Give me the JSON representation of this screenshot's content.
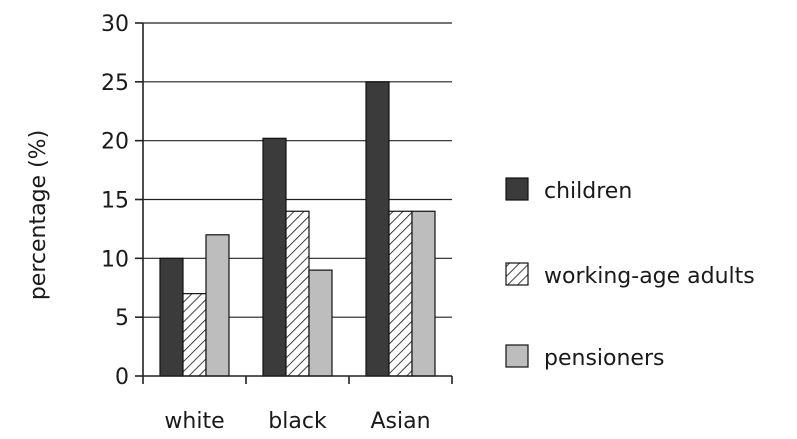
{
  "chart_data": {
    "type": "bar",
    "ylabel": "percentage (%)",
    "xlabel": "",
    "categories": [
      "white",
      "black",
      "Asian"
    ],
    "yticks": [
      "0",
      "5",
      "10",
      "15",
      "20",
      "25",
      "30"
    ],
    "ylim": [
      0,
      30
    ],
    "grid": true,
    "legend_position": "right",
    "series": [
      {
        "name": "children",
        "values": [
          10,
          20.2,
          25
        ],
        "color": "#3b3b3b",
        "pattern": "solid"
      },
      {
        "name": "working-age adults",
        "values": [
          7,
          14,
          14
        ],
        "color": "#ffffff",
        "pattern": "diagonal-hatch"
      },
      {
        "name": "pensioners",
        "values": [
          12,
          9,
          14
        ],
        "color": "#bdbdbd",
        "pattern": "solid"
      }
    ]
  }
}
